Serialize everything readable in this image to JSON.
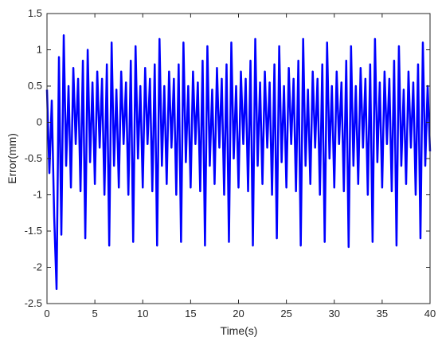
{
  "chart_data": {
    "type": "line",
    "x_label": "Time(s)",
    "y_label": "Error(mm)",
    "color": "#0000ff",
    "xlim": [
      0,
      40
    ],
    "ylim": [
      -2.5,
      1.5
    ],
    "xticks": [
      0,
      5,
      10,
      15,
      20,
      25,
      30,
      35,
      40
    ],
    "yticks": [
      -2.5,
      -2,
      -1.5,
      -1,
      -0.5,
      0,
      0.5,
      1,
      1.5
    ],
    "x": [
      0,
      0.25,
      0.5,
      0.75,
      1,
      1.25,
      1.5,
      1.75,
      2,
      2.25,
      2.5,
      2.75,
      3,
      3.25,
      3.5,
      3.75,
      4,
      4.25,
      4.5,
      4.75,
      5,
      5.25,
      5.5,
      5.75,
      6,
      6.25,
      6.5,
      6.75,
      7,
      7.25,
      7.5,
      7.75,
      8,
      8.25,
      8.5,
      8.75,
      9,
      9.25,
      9.5,
      9.75,
      10,
      10.25,
      10.5,
      10.75,
      11,
      11.25,
      11.5,
      11.75,
      12,
      12.25,
      12.5,
      12.75,
      13,
      13.25,
      13.5,
      13.75,
      14,
      14.25,
      14.5,
      14.75,
      15,
      15.25,
      15.5,
      15.75,
      16,
      16.25,
      16.5,
      16.75,
      17,
      17.25,
      17.5,
      17.75,
      18,
      18.25,
      18.5,
      18.75,
      19,
      19.25,
      19.5,
      19.75,
      20,
      20.25,
      20.5,
      20.75,
      21,
      21.25,
      21.5,
      21.75,
      22,
      22.25,
      22.5,
      22.75,
      23,
      23.25,
      23.5,
      23.75,
      24,
      24.25,
      24.5,
      24.75,
      25,
      25.25,
      25.5,
      25.75,
      26,
      26.25,
      26.5,
      26.75,
      27,
      27.25,
      27.5,
      27.75,
      28,
      28.25,
      28.5,
      28.75,
      29,
      29.25,
      29.5,
      29.75,
      30,
      30.25,
      30.5,
      30.75,
      31,
      31.25,
      31.5,
      31.75,
      32,
      32.25,
      32.5,
      32.75,
      33,
      33.25,
      33.5,
      33.75,
      34,
      34.25,
      34.5,
      34.75,
      35,
      35.25,
      35.5,
      35.75,
      36,
      36.25,
      36.5,
      36.75,
      37,
      37.25,
      37.5,
      37.75,
      38,
      38.25,
      38.5,
      38.75,
      39,
      39.25,
      39.5,
      39.75,
      40
    ],
    "values": [
      0.45,
      -0.7,
      0.3,
      -1.3,
      -2.3,
      0.9,
      -1.55,
      1.2,
      -0.6,
      0.5,
      -0.9,
      0.75,
      -0.3,
      0.6,
      -0.95,
      0.85,
      -1.6,
      1.0,
      -0.55,
      0.55,
      -0.85,
      0.7,
      -0.35,
      0.6,
      -1.0,
      0.8,
      -1.7,
      1.1,
      -0.6,
      0.45,
      -0.9,
      0.7,
      -0.3,
      0.55,
      -1.0,
      0.85,
      -1.65,
      1.05,
      -0.5,
      0.5,
      -0.9,
      0.75,
      -0.3,
      0.6,
      -0.95,
      0.8,
      -1.7,
      1.15,
      -0.6,
      0.5,
      -0.85,
      0.7,
      -0.35,
      0.6,
      -1.0,
      0.8,
      -1.65,
      1.1,
      -0.55,
      0.5,
      -0.9,
      0.7,
      -0.3,
      0.55,
      -0.95,
      0.85,
      -1.7,
      1.05,
      -0.6,
      0.45,
      -0.85,
      0.75,
      -0.35,
      0.6,
      -1.0,
      0.8,
      -1.65,
      1.1,
      -0.5,
      0.5,
      -0.9,
      0.7,
      -0.3,
      0.6,
      -0.95,
      0.85,
      -1.7,
      1.15,
      -0.6,
      0.55,
      -0.85,
      0.7,
      -0.35,
      0.55,
      -1.0,
      0.8,
      -1.6,
      1.05,
      -0.55,
      0.5,
      -0.9,
      0.75,
      -0.3,
      0.6,
      -0.95,
      0.85,
      -1.7,
      1.15,
      -0.6,
      0.45,
      -0.85,
      0.7,
      -0.35,
      0.6,
      -1.0,
      0.8,
      -1.65,
      1.1,
      -0.5,
      0.5,
      -0.9,
      0.7,
      -0.3,
      0.55,
      -0.95,
      0.85,
      -1.72,
      1.05,
      -0.6,
      0.5,
      -0.85,
      0.75,
      -0.35,
      0.6,
      -1.0,
      0.8,
      -1.65,
      1.15,
      -0.55,
      0.55,
      -0.9,
      0.7,
      -0.3,
      0.6,
      -0.95,
      0.85,
      -1.7,
      1.05,
      -0.6,
      0.45,
      -0.85,
      0.7,
      -0.35,
      0.55,
      -1.0,
      0.8,
      -1.6,
      1.1,
      -0.6,
      0.5,
      -0.4
    ]
  }
}
